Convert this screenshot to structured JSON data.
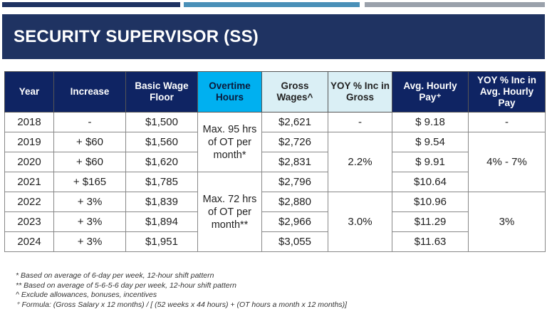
{
  "top_bars": {
    "colors": [
      "#1f3362",
      "#4a90b8",
      "#9aa1ab"
    ]
  },
  "title": "SECURITY SUPERVISOR (SS)",
  "table": {
    "headers": [
      "Year",
      "Increase",
      "Basic Wage Floor",
      "Overtime Hours",
      "Gross Wages^",
      "YOY % Inc in Gross",
      "Avg. Hourly Pay⁺",
      "YOY % Inc in Avg. Hourly Pay"
    ],
    "rows": [
      {
        "year": "2018",
        "increase": "-",
        "basic": "$1,500",
        "gross": "$2,621",
        "avg": "$ 9.18"
      },
      {
        "year": "2019",
        "increase": "+ $60",
        "basic": "$1,560",
        "gross": "$2,726",
        "avg": "$ 9.54"
      },
      {
        "year": "2020",
        "increase": "+ $60",
        "basic": "$1,620",
        "gross": "$2,831",
        "avg": "$ 9.91"
      },
      {
        "year": "2021",
        "increase": "+ $165",
        "basic": "$1,785",
        "gross": "$2,796",
        "avg": "$10.64"
      },
      {
        "year": "2022",
        "increase": "+ 3%",
        "basic": "$1,839",
        "gross": "$2,880",
        "avg": "$10.96"
      },
      {
        "year": "2023",
        "increase": "+ 3%",
        "basic": "$1,894",
        "gross": "$2,966",
        "avg": "$11.29"
      },
      {
        "year": "2024",
        "increase": "+ 3%",
        "basic": "$1,951",
        "gross": "$3,055",
        "avg": "$11.63"
      }
    ],
    "ot_groups": [
      "Max. 95 hrs of OT per month*",
      "Max. 72 hrs of OT per month**"
    ],
    "yoy_gross": [
      "-",
      "2.2%",
      "3.0%"
    ],
    "yoy_avg": [
      "-",
      "4% - 7%",
      "3%"
    ]
  },
  "notes": [
    "* Based on average of 6-day per week, 12-hour shift pattern",
    "** Based on average of 5-6-5-6 day per week, 12-hour shift pattern",
    "^ Exclude allowances, bonuses, incentives",
    "⁺ Formula:  (Gross Salary x 12 months) / [ (52 weeks x 44 hours) + (OT hours a month x 12 months)]"
  ]
}
